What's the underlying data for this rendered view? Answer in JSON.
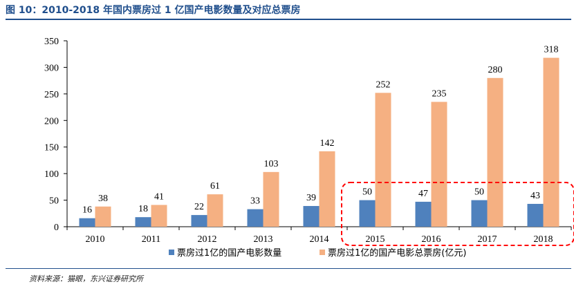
{
  "header": {
    "title": "图 10：2010-2018 年国内票房过 1 亿国产电影数量及对应总票房"
  },
  "footer": {
    "source": "资料来源：猫眼，东兴证券研究所"
  },
  "colors": {
    "series_count": "#4f81bd",
    "series_box_office": "#f5b082",
    "highlight": "#ff0000",
    "title": "#1f4e8c"
  },
  "chart_data": {
    "type": "bar",
    "title": "",
    "xlabel": "",
    "ylabel": "",
    "ylim": [
      0,
      350
    ],
    "yticks": [
      0,
      50,
      100,
      150,
      200,
      250,
      300,
      350
    ],
    "categories": [
      "2010",
      "2011",
      "2012",
      "2013",
      "2014",
      "2015",
      "2016",
      "2017",
      "2018"
    ],
    "series": [
      {
        "name": "票房过1亿的国产电影数量",
        "values": [
          16,
          18,
          22,
          33,
          39,
          50,
          47,
          50,
          43
        ]
      },
      {
        "name": "票房过1亿的国产电影总票房(亿元)",
        "values": [
          38,
          41,
          61,
          103,
          142,
          252,
          235,
          280,
          318
        ]
      }
    ],
    "legend_position": "bottom",
    "grid": false,
    "annotation": "dashed red box highlighting 2015-2018"
  }
}
